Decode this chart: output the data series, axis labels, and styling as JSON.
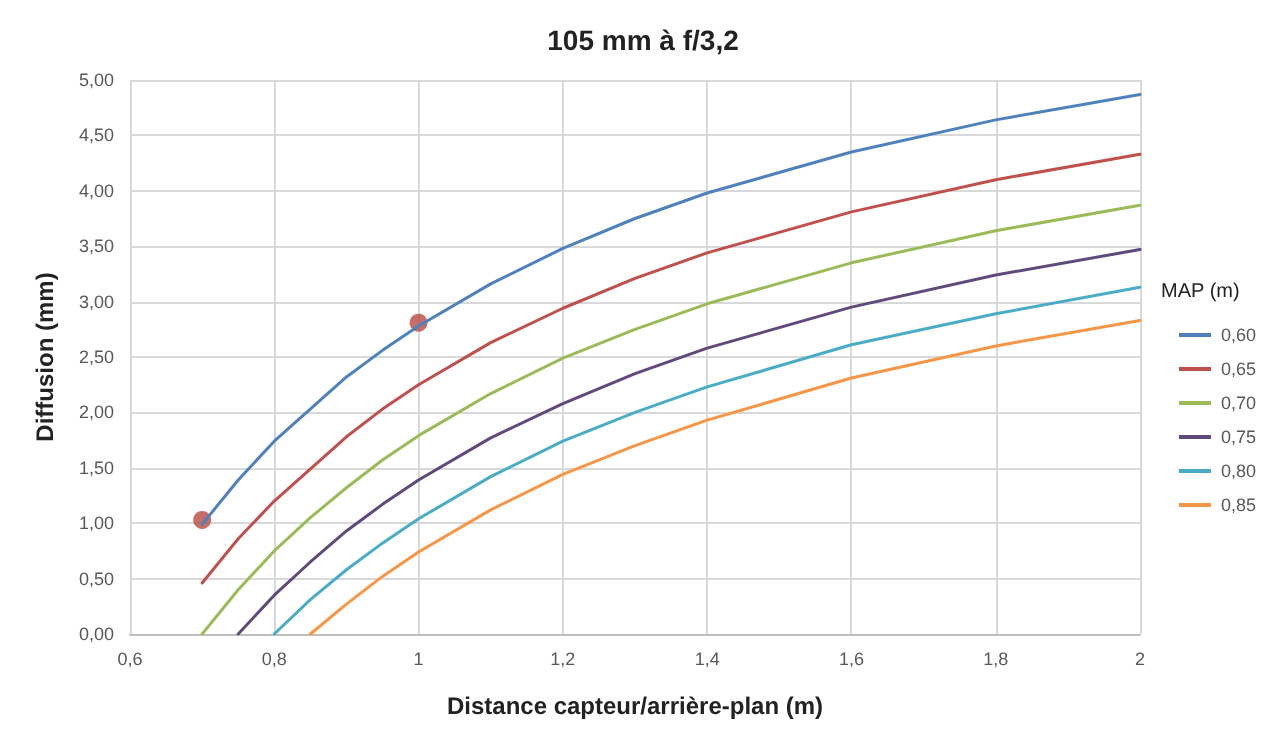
{
  "chart_data": {
    "type": "line",
    "title": "105 mm à f/3,2",
    "xlabel": "Distance capteur/arrière-plan (m)",
    "ylabel": "Diffusion (mm)",
    "legend_title": "MAP (m)",
    "xlim": [
      0.6,
      2
    ],
    "xticks": [
      {
        "value": 0.6,
        "label": "0,6"
      },
      {
        "value": 0.8,
        "label": "0,8"
      },
      {
        "value": 1,
        "label": "1"
      },
      {
        "value": 1.2,
        "label": "1,2"
      },
      {
        "value": 1.4,
        "label": "1,4"
      },
      {
        "value": 1.6,
        "label": "1,6"
      },
      {
        "value": 1.8,
        "label": "1,8"
      },
      {
        "value": 2,
        "label": "2"
      }
    ],
    "ylim": [
      0,
      5
    ],
    "yticks": [
      {
        "value": 0,
        "label": "0,00"
      },
      {
        "value": 0.5,
        "label": "0,50"
      },
      {
        "value": 1,
        "label": "1,00"
      },
      {
        "value": 1.5,
        "label": "1,50"
      },
      {
        "value": 2,
        "label": "2,00"
      },
      {
        "value": 2.5,
        "label": "2,50"
      },
      {
        "value": 3,
        "label": "3,00"
      },
      {
        "value": 3.5,
        "label": "3,50"
      },
      {
        "value": 4,
        "label": "4,00"
      },
      {
        "value": 4.5,
        "label": "4,50"
      },
      {
        "value": 5,
        "label": "5,00"
      }
    ],
    "grid": true,
    "legend": "right",
    "marker": "none",
    "line_style": "solid",
    "series": [
      {
        "name": "0,60",
        "color": "#4f81bd",
        "x": [
          0.7,
          0.75,
          0.8,
          0.9,
          0.95,
          1.0,
          1.1,
          1.2,
          1.3,
          1.4,
          1.6,
          1.8,
          2.0
        ],
        "values": [
          0.99,
          1.39,
          1.74,
          2.32,
          2.56,
          2.78,
          3.16,
          3.48,
          3.75,
          3.98,
          4.35,
          4.64,
          4.87
        ]
      },
      {
        "name": "0,65",
        "color": "#c0504d",
        "x": [
          0.7,
          0.75,
          0.8,
          0.9,
          0.95,
          1.0,
          1.1,
          1.2,
          1.3,
          1.4,
          1.6,
          1.8,
          2.0
        ],
        "values": [
          0.46,
          0.86,
          1.2,
          1.78,
          2.03,
          2.25,
          2.63,
          2.94,
          3.21,
          3.44,
          3.81,
          4.1,
          4.33
        ]
      },
      {
        "name": "0,70",
        "color": "#9bbb59",
        "x": [
          0.7,
          0.75,
          0.8,
          0.85,
          0.9,
          0.95,
          1.0,
          1.1,
          1.2,
          1.3,
          1.4,
          1.6,
          1.8,
          2.0
        ],
        "values": [
          0,
          0.4,
          0.75,
          1.05,
          1.32,
          1.57,
          1.79,
          2.17,
          2.49,
          2.75,
          2.98,
          3.35,
          3.64,
          3.87
        ]
      },
      {
        "name": "0,75",
        "color": "#604a7b",
        "x": [
          0.75,
          0.8,
          0.85,
          0.9,
          0.95,
          1.0,
          1.1,
          1.2,
          1.3,
          1.4,
          1.6,
          1.8,
          2.0
        ],
        "values": [
          0,
          0.35,
          0.65,
          0.93,
          1.17,
          1.39,
          1.77,
          2.08,
          2.35,
          2.58,
          2.95,
          3.24,
          3.47
        ]
      },
      {
        "name": "0,80",
        "color": "#4bacc6",
        "x": [
          0.8,
          0.85,
          0.9,
          0.95,
          1.0,
          1.1,
          1.2,
          1.3,
          1.4,
          1.6,
          1.8,
          2.0
        ],
        "values": [
          0,
          0.31,
          0.58,
          0.82,
          1.04,
          1.42,
          1.74,
          2.0,
          2.23,
          2.61,
          2.89,
          3.13
        ]
      },
      {
        "name": "0,85",
        "color": "#f79646",
        "x": [
          0.85,
          0.9,
          0.95,
          1.0,
          1.1,
          1.2,
          1.3,
          1.4,
          1.6,
          1.8,
          2.0
        ],
        "values": [
          0,
          0.27,
          0.52,
          0.74,
          1.12,
          1.44,
          1.7,
          1.93,
          2.31,
          2.6,
          2.83
        ]
      },
      {
        "type": "scatter",
        "marker": "circle",
        "color": "#b94a44",
        "x": [
          0.7,
          1.0
        ],
        "values": [
          1.03,
          2.81
        ]
      }
    ]
  }
}
